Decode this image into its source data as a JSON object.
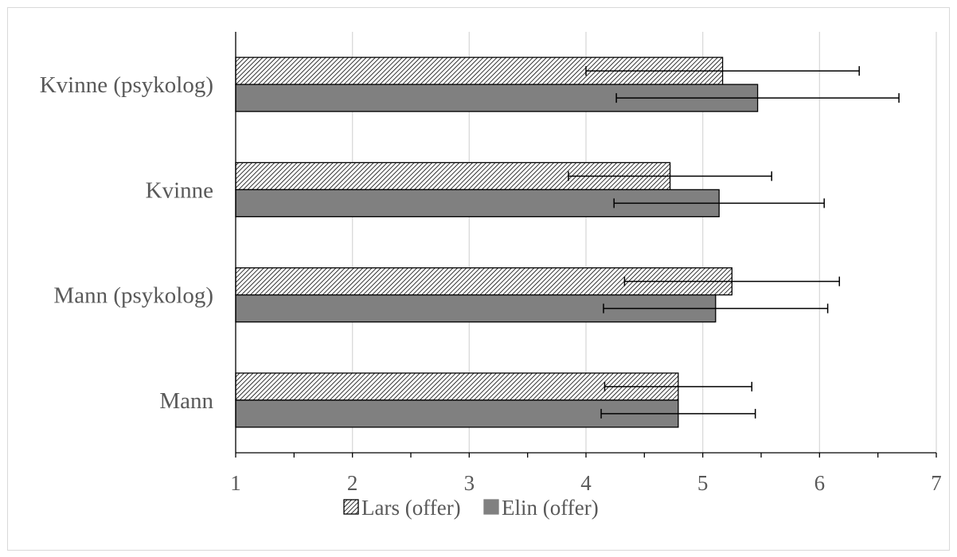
{
  "chart_data": {
    "type": "bar",
    "orientation": "horizontal",
    "categories": [
      "Mann",
      "Mann (psykolog)",
      "Kvinne",
      "Kvinne (psykolog)"
    ],
    "series": [
      {
        "name": "Lars (offer)",
        "values": [
          4.79,
          5.25,
          4.72,
          5.17
        ],
        "error": [
          0.63,
          0.92,
          0.87,
          1.17
        ],
        "color": "#ffffff",
        "pattern": "diagonal-hatch"
      },
      {
        "name": "Elin (offer)",
        "values": [
          4.79,
          5.11,
          5.14,
          5.47
        ],
        "error": [
          0.66,
          0.96,
          0.9,
          1.21
        ],
        "color": "#808080",
        "pattern": "solid"
      }
    ],
    "xlim": [
      1,
      7
    ],
    "xticks": [
      "1",
      "2",
      "3",
      "4",
      "5",
      "6",
      "7"
    ],
    "grid": "vertical",
    "legend": "bottom",
    "title": "",
    "xlabel": "",
    "ylabel": ""
  }
}
